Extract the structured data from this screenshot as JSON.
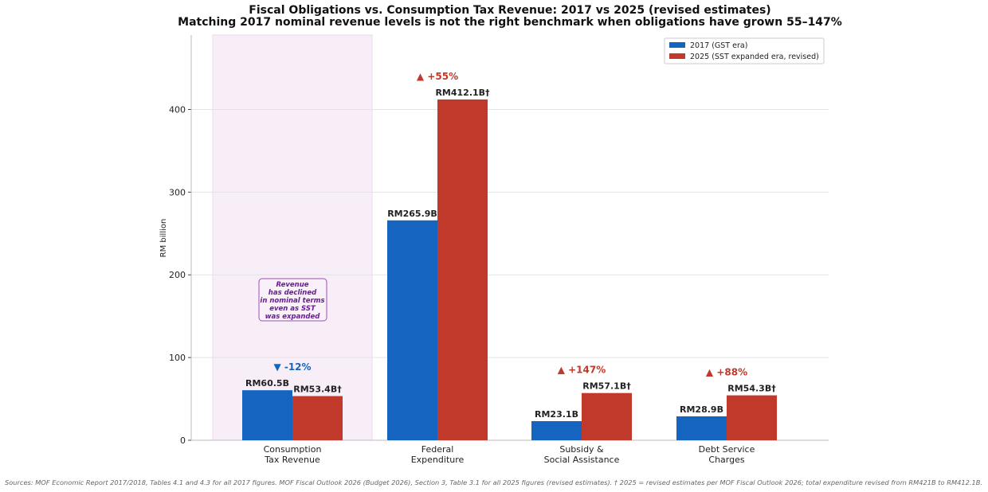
{
  "chart_data": {
    "type": "bar",
    "title": "Fiscal Obligations vs. Consumption Tax Revenue: 2017 vs 2025 (revised estimates)",
    "subtitle": "Matching 2017 nominal revenue levels is not the right benchmark when obligations have grown 55–147%",
    "ylabel": "RM billion",
    "ylim": [
      0,
      490
    ],
    "yticks": [
      0,
      100,
      200,
      300,
      400
    ],
    "grid": true,
    "legend_position": "top-right",
    "categories": [
      "Consumption\nTax Revenue",
      "Federal\nExpenditure",
      "Subsidy &\nSocial Assistance",
      "Debt Service\nCharges"
    ],
    "series": [
      {
        "name": "2017 (GST era)",
        "color": "#1565c0",
        "values": [
          60.5,
          265.9,
          23.1,
          28.9
        ],
        "labels": [
          "RM60.5B",
          "RM265.9B",
          "RM23.1B",
          "RM28.9B"
        ]
      },
      {
        "name": "2025 (SST expanded era, revised)",
        "color": "#c0392b",
        "values": [
          53.4,
          412.1,
          57.1,
          54.3
        ],
        "labels": [
          "RM53.4B†",
          "RM412.1B†",
          "RM57.1B†",
          "RM54.3B†"
        ]
      }
    ],
    "changes": [
      {
        "text": "▼ -12%",
        "color": "#1565c0"
      },
      {
        "text": "▲ +55%",
        "color": "#c0392b"
      },
      {
        "text": "▲ +147%",
        "color": "#c0392b"
      },
      {
        "text": "▲ +88%",
        "color": "#c0392b"
      }
    ],
    "highlight_category": 0,
    "annotation": "Revenue\nhas declined\nin nominal terms\neven as SST\nwas expanded",
    "footnote": "Sources: MOF Economic Report 2017/2018, Tables 4.1 and 4.3 for all 2017 figures. MOF Fiscal Outlook 2026 (Budget 2026), Section 3, Table 3.1 for all 2025 figures (revised estimates). † 2025 = revised estimates per MOF Fiscal Outlook 2026; total expenditure revised from RM421B to RM412.1B."
  }
}
